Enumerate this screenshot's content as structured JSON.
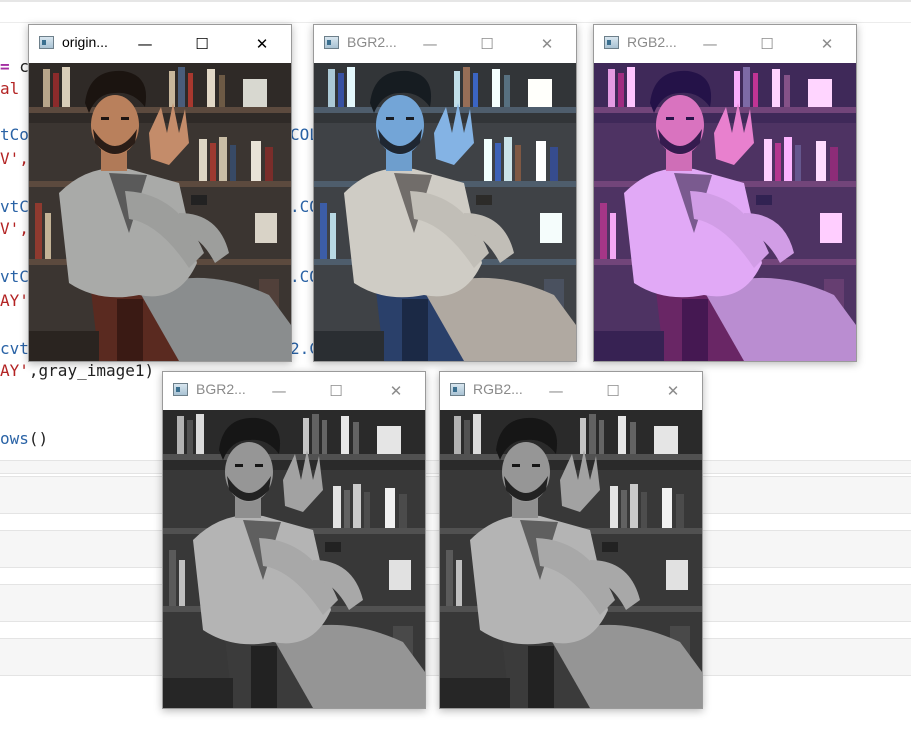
{
  "editor": {
    "lines": [
      {
        "segments": [
          {
            "t": "= ",
            "c": "purple"
          },
          {
            "t": "c",
            "c": "plain"
          }
        ]
      },
      {
        "segments": [
          {
            "t": "al",
            "c": "red"
          }
        ]
      },
      {
        "segments": [
          {
            "t": "tCo",
            "c": "blue"
          },
          {
            "t": "COL",
            "c": "blue"
          }
        ]
      },
      {
        "segments": [
          {
            "t": "V',",
            "c": "red"
          }
        ]
      },
      {
        "segments": [
          {
            "t": "vtC",
            "c": "blue"
          },
          {
            "t": ".CO",
            "c": "blue"
          }
        ]
      },
      {
        "segments": [
          {
            "t": "V',",
            "c": "red"
          }
        ]
      },
      {
        "segments": [
          {
            "t": "vtC",
            "c": "blue"
          },
          {
            "t": ".CO",
            "c": "blue"
          }
        ]
      },
      {
        "segments": [
          {
            "t": "AY'",
            "c": "red"
          }
        ]
      },
      {
        "segments": [
          {
            "t": "cvt",
            "c": "blue"
          },
          {
            "t": "2.C",
            "c": "blue"
          }
        ]
      },
      {
        "segments": [
          {
            "t": "AY'",
            "c": "red"
          },
          {
            "t": ",gray_image1)",
            "c": "plain"
          }
        ]
      },
      {
        "segments": [
          {
            "t": "ows",
            "c": "blue"
          },
          {
            "t": "()",
            "c": "plain"
          }
        ]
      }
    ]
  },
  "windows": [
    {
      "title": "origin...",
      "active": true,
      "variant": "color"
    },
    {
      "title": "BGR2...",
      "active": false,
      "variant": "bgr"
    },
    {
      "title": "RGB2...",
      "active": false,
      "variant": "rgb"
    },
    {
      "title": "BGR2...",
      "active": false,
      "variant": "gray"
    },
    {
      "title": "RGB2...",
      "active": false,
      "variant": "gray"
    }
  ],
  "controls": {
    "minimize": "—",
    "maximize": "☐",
    "close": "✕"
  },
  "icons": {
    "app": "opencv-window-icon"
  }
}
